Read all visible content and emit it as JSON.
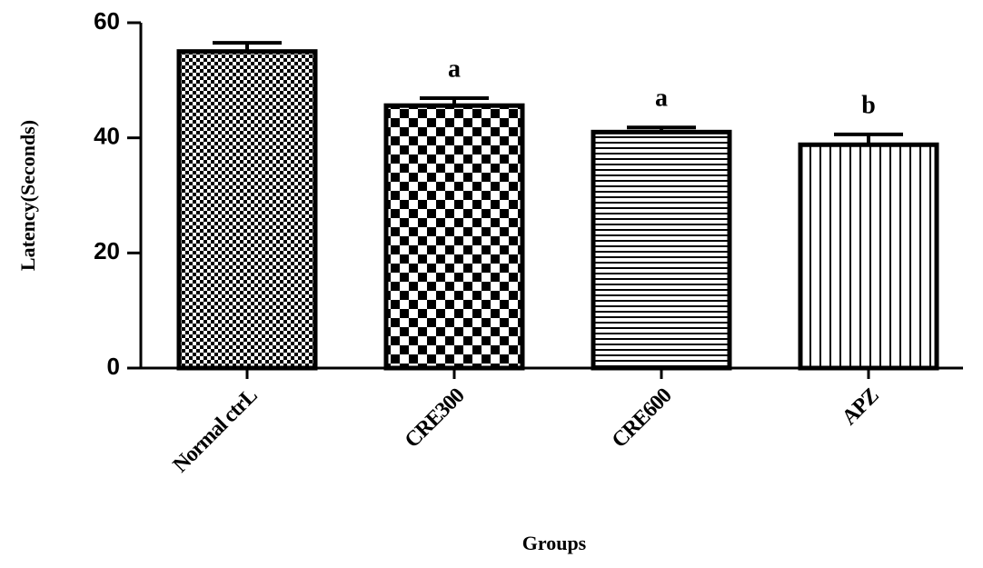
{
  "chart_data": {
    "type": "bar",
    "x_label": "Groups",
    "y_label": "Latency(Seconds)",
    "categories": [
      "Normal ctrL",
      "CRE300",
      "CRE600",
      "APZ"
    ],
    "values": [
      55,
      45.6,
      41,
      38.8
    ],
    "errors": [
      1.5,
      1.3,
      0.8,
      1.8
    ],
    "annotations": [
      null,
      "a",
      "a",
      "b"
    ],
    "ylim": [
      0,
      60
    ],
    "yticks": [
      0,
      20,
      40,
      60
    ],
    "color": "#000000"
  }
}
